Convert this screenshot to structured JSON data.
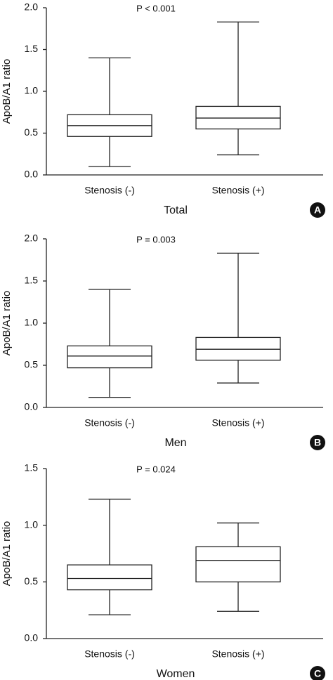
{
  "chart_data": [
    {
      "type": "box",
      "panel": "A",
      "title": "Total",
      "annotation": "P < 0.001",
      "ylabel": "ApoB/A1 ratio",
      "categories": [
        "Stenosis (-)",
        "Stenosis (+)"
      ],
      "boxes": [
        {
          "min": 0.1,
          "q1": 0.46,
          "median": 0.59,
          "q3": 0.72,
          "max": 1.4
        },
        {
          "min": 0.24,
          "q1": 0.55,
          "median": 0.68,
          "q3": 0.82,
          "max": 1.83
        }
      ],
      "ylim": [
        0,
        2
      ],
      "yticks": [
        {
          "value": 0,
          "label": "0.0"
        },
        0.5,
        {
          "value": 1,
          "label": "1.0"
        },
        1.5,
        {
          "value": 2,
          "label": "2.0"
        }
      ]
    },
    {
      "type": "box",
      "panel": "B",
      "title": "Men",
      "annotation": "P = 0.003",
      "ylabel": "ApoB/A1 ratio",
      "categories": [
        "Stenosis (-)",
        "Stenosis (+)"
      ],
      "boxes": [
        {
          "min": 0.12,
          "q1": 0.47,
          "median": 0.61,
          "q3": 0.73,
          "max": 1.4
        },
        {
          "min": 0.29,
          "q1": 0.56,
          "median": 0.69,
          "q3": 0.83,
          "max": 1.83
        }
      ],
      "ylim": [
        0,
        2
      ],
      "yticks": [
        {
          "value": 0,
          "label": "0.0"
        },
        0.5,
        {
          "value": 1,
          "label": "1.0"
        },
        1.5,
        {
          "value": 2,
          "label": "2.0"
        }
      ]
    },
    {
      "type": "box",
      "panel": "C",
      "title": "Women",
      "annotation": "P = 0.024",
      "ylabel": "ApoB/A1 ratio",
      "categories": [
        "Stenosis (-)",
        "Stenosis (+)"
      ],
      "boxes": [
        {
          "min": 0.21,
          "q1": 0.43,
          "median": 0.53,
          "q3": 0.65,
          "max": 1.23
        },
        {
          "min": 0.24,
          "q1": 0.5,
          "median": 0.69,
          "q3": 0.81,
          "max": 1.02
        }
      ],
      "ylim": [
        0,
        1.5
      ],
      "yticks": [
        {
          "value": 0,
          "label": "0.0"
        },
        0.5,
        {
          "value": 1,
          "label": "1.0"
        },
        1.5
      ]
    }
  ]
}
